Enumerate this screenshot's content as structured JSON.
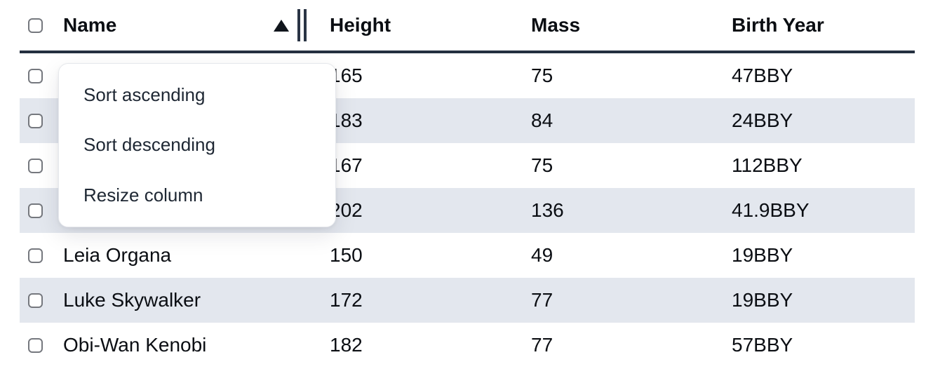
{
  "table": {
    "columns": [
      {
        "label": "Name",
        "sort": "ascending"
      },
      {
        "label": "Height"
      },
      {
        "label": "Mass"
      },
      {
        "label": "Birth Year"
      }
    ],
    "rows": [
      {
        "name": "",
        "height": "165",
        "mass": "75",
        "birth_year": "47BBY"
      },
      {
        "name": "",
        "height": "183",
        "mass": "84",
        "birth_year": "24BBY"
      },
      {
        "name": "",
        "height": "167",
        "mass": "75",
        "birth_year": "112BBY"
      },
      {
        "name": "",
        "height": "202",
        "mass": "136",
        "birth_year": "41.9BBY"
      },
      {
        "name": "Leia Organa",
        "height": "150",
        "mass": "49",
        "birth_year": "19BBY"
      },
      {
        "name": "Luke Skywalker",
        "height": "172",
        "mass": "77",
        "birth_year": "19BBY"
      },
      {
        "name": "Obi-Wan Kenobi",
        "height": "182",
        "mass": "77",
        "birth_year": "57BBY"
      }
    ]
  },
  "context_menu": {
    "items": [
      {
        "label": "Sort ascending"
      },
      {
        "label": "Sort descending"
      },
      {
        "label": "Resize column"
      }
    ]
  },
  "icons": {
    "sort_indicator": "triangle-up-icon",
    "resize_handle": "double-bar-icon"
  },
  "colors": {
    "header_border": "#243040",
    "stripe": "#e3e7ee",
    "text": "#0b0e13",
    "menu_text": "#1e2733",
    "checkbox_border": "#75787e"
  }
}
